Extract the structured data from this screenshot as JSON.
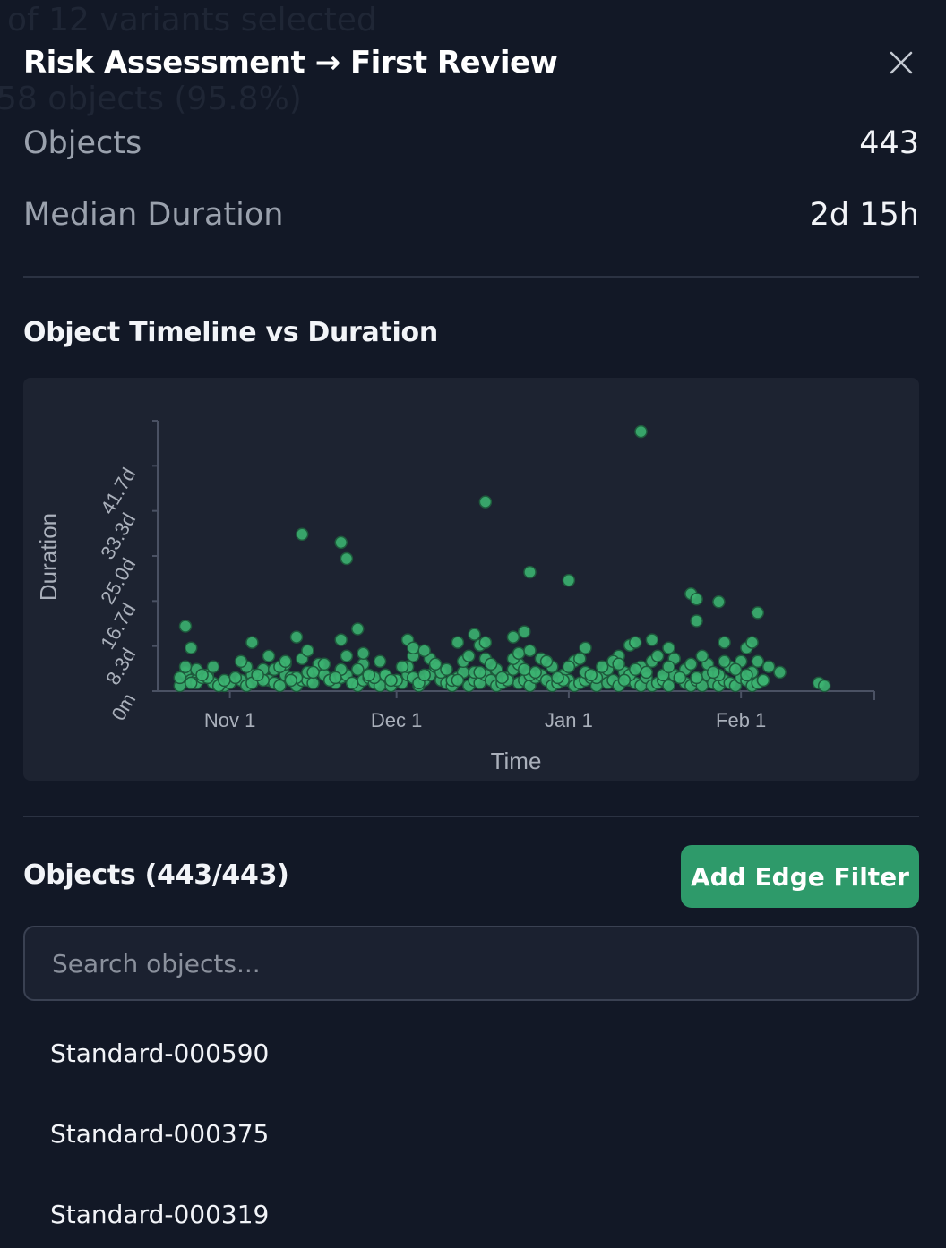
{
  "background_text": [
    "of 12 variants selected",
    "58 objects (95.8%)"
  ],
  "panel": {
    "title": "Risk Assessment → First Review",
    "close_icon": "close-icon"
  },
  "stats": [
    {
      "label": "Objects",
      "value": "443"
    },
    {
      "label": "Median Duration",
      "value": "2d 15h"
    }
  ],
  "chart_section_title": "Object Timeline vs Duration",
  "chart_data": {
    "type": "scatter",
    "xlabel": "Time",
    "ylabel": "Duration",
    "x_tick_labels": [
      "Nov 1",
      "Dec 1",
      "Jan 1",
      "Feb 1"
    ],
    "y_tick_labels": [
      "0m",
      "8.3d",
      "16.7d",
      "25.0d",
      "33.3d",
      "41.7d"
    ],
    "ylim_days": [
      0,
      50
    ],
    "xlim": [
      "2024-10-19",
      "2025-02-25"
    ],
    "grid": false,
    "point_color": "#3cb371",
    "series": [
      {
        "x": [
          "2024-10-23",
          "2024-10-24",
          "2024-10-25",
          "2024-10-26",
          "2024-10-26",
          "2024-10-27",
          "2024-10-28",
          "2024-10-29",
          "2024-10-30",
          "2024-10-31",
          "2024-11-01",
          "2024-11-03",
          "2024-11-04",
          "2024-11-05",
          "2024-11-06",
          "2024-11-07",
          "2024-11-08",
          "2024-11-09",
          "2024-11-10",
          "2024-11-11",
          "2024-11-12",
          "2024-11-13",
          "2024-11-14",
          "2024-11-15",
          "2024-11-16",
          "2024-11-17",
          "2024-11-18",
          "2024-11-19",
          "2024-11-20",
          "2024-11-21",
          "2024-11-22",
          "2024-11-23",
          "2024-11-24",
          "2024-11-25",
          "2024-11-26",
          "2024-11-27",
          "2024-11-28",
          "2024-11-29",
          "2024-11-30",
          "2024-12-01",
          "2024-12-02",
          "2024-12-03",
          "2024-12-04",
          "2024-12-05",
          "2024-12-06",
          "2024-12-07",
          "2024-12-08",
          "2024-12-09",
          "2024-12-10",
          "2024-12-11",
          "2024-12-12",
          "2024-12-13",
          "2024-12-14",
          "2024-12-15",
          "2024-12-16",
          "2024-12-17",
          "2024-12-18",
          "2024-12-19",
          "2024-12-20",
          "2024-12-21",
          "2024-12-22",
          "2024-12-23",
          "2024-12-24",
          "2024-12-25",
          "2024-12-26",
          "2024-12-27",
          "2024-12-28",
          "2024-12-29",
          "2024-12-30",
          "2024-12-31",
          "2025-01-01",
          "2025-01-02",
          "2025-01-03",
          "2025-01-04",
          "2025-01-05",
          "2025-01-06",
          "2025-01-07",
          "2025-01-08",
          "2025-01-09",
          "2025-01-10",
          "2025-01-11",
          "2025-01-12",
          "2025-01-13",
          "2025-01-14",
          "2025-01-15",
          "2025-01-16",
          "2025-01-17",
          "2025-01-18",
          "2025-01-19",
          "2025-01-20",
          "2025-01-21",
          "2025-01-22",
          "2025-01-23",
          "2025-01-24",
          "2025-01-25",
          "2025-01-26",
          "2025-01-27",
          "2025-01-28",
          "2025-01-29",
          "2025-01-30",
          "2025-01-31",
          "2025-02-01",
          "2025-02-02",
          "2025-02-03",
          "2025-02-04",
          "2025-02-05",
          "2025-02-08",
          "2025-02-15",
          "2025-02-16",
          "2024-10-23",
          "2024-10-25",
          "2024-10-26",
          "2024-10-28",
          "2024-10-30",
          "2024-11-02",
          "2024-11-04",
          "2024-11-05",
          "2024-11-07",
          "2024-11-09",
          "2024-11-11",
          "2024-11-13",
          "2024-11-15",
          "2024-11-17",
          "2024-11-19",
          "2024-11-21",
          "2024-11-23",
          "2024-11-25",
          "2024-11-27",
          "2024-11-29",
          "2024-12-01",
          "2024-12-03",
          "2024-12-05",
          "2024-12-07",
          "2024-12-09",
          "2024-12-11",
          "2024-12-13",
          "2024-12-15",
          "2024-12-17",
          "2024-12-19",
          "2024-12-21",
          "2024-12-23",
          "2024-12-25",
          "2024-12-27",
          "2024-12-29",
          "2024-12-31",
          "2025-01-02",
          "2025-01-04",
          "2025-01-06",
          "2025-01-08",
          "2025-01-10",
          "2025-01-12",
          "2025-01-14",
          "2025-01-16",
          "2025-01-18",
          "2025-01-20",
          "2025-01-22",
          "2025-01-24",
          "2025-01-26",
          "2025-01-28",
          "2025-01-30",
          "2025-02-01",
          "2025-02-03",
          "2025-02-05",
          "2024-10-24",
          "2024-10-27",
          "2024-10-31",
          "2024-11-03",
          "2024-11-06",
          "2024-11-08",
          "2024-11-10",
          "2024-11-12",
          "2024-11-14",
          "2024-11-16",
          "2024-11-18",
          "2024-11-20",
          "2024-11-22",
          "2024-11-24",
          "2024-11-26",
          "2024-11-28",
          "2024-11-30",
          "2024-12-02",
          "2024-12-04",
          "2024-12-06",
          "2024-12-08",
          "2024-12-10",
          "2024-12-12",
          "2024-12-14",
          "2024-12-16",
          "2024-12-18",
          "2024-12-20",
          "2024-12-22",
          "2024-12-24",
          "2024-12-26",
          "2024-12-28",
          "2024-12-30",
          "2025-01-01",
          "2025-01-03",
          "2025-01-05",
          "2025-01-07",
          "2025-01-09",
          "2025-01-11",
          "2025-01-13",
          "2025-01-15",
          "2025-01-17",
          "2025-01-19",
          "2025-01-21",
          "2025-01-23",
          "2025-01-25",
          "2025-01-27",
          "2025-01-29",
          "2025-01-31",
          "2025-02-02",
          "2025-02-04",
          "2024-10-24",
          "2024-10-25",
          "2024-10-29",
          "2024-11-05",
          "2024-11-11",
          "2024-11-13",
          "2024-11-15",
          "2024-11-21",
          "2024-11-24",
          "2024-11-25",
          "2024-12-03",
          "2024-12-04",
          "2024-12-06",
          "2024-12-12",
          "2024-12-15",
          "2024-12-16",
          "2024-12-17",
          "2024-12-22",
          "2024-12-23",
          "2024-12-24",
          "2024-12-25",
          "2025-01-04",
          "2025-01-10",
          "2025-01-12",
          "2025-01-13",
          "2025-01-16",
          "2025-01-19",
          "2025-01-24",
          "2025-01-29",
          "2025-02-02",
          "2025-02-03",
          "2025-02-06",
          "2024-11-14",
          "2024-11-21",
          "2024-11-22",
          "2024-12-17",
          "2024-12-25",
          "2025-01-01",
          "2025-01-14",
          "2025-01-23",
          "2025-01-24",
          "2025-01-28",
          "2025-02-04"
        ],
        "y": [
          1.0,
          3.5,
          2.0,
          2.0,
          1.5,
          2.5,
          3.0,
          1.5,
          1.0,
          1.0,
          1.5,
          2.0,
          1.0,
          3.0,
          2.5,
          4.0,
          2.0,
          1.5,
          1.0,
          3.0,
          2.5,
          1.0,
          2.0,
          2.0,
          1.5,
          4.0,
          3.0,
          2.0,
          1.5,
          2.5,
          3.0,
          1.5,
          1.0,
          2.0,
          2.5,
          1.5,
          1.0,
          3.0,
          1.0,
          2.0,
          1.5,
          3.0,
          2.5,
          1.0,
          2.0,
          3.0,
          4.5,
          2.0,
          1.5,
          1.0,
          2.5,
          3.5,
          1.0,
          2.0,
          1.5,
          3.0,
          2.0,
          1.0,
          1.5,
          2.5,
          4.0,
          1.5,
          2.0,
          1.0,
          2.5,
          3.0,
          2.0,
          1.0,
          1.5,
          3.0,
          2.0,
          1.0,
          1.5,
          2.0,
          2.5,
          1.0,
          3.0,
          1.5,
          2.0,
          1.0,
          3.5,
          2.0,
          1.5,
          1.0,
          2.5,
          1.0,
          1.5,
          2.0,
          1.0,
          3.0,
          2.5,
          1.5,
          1.0,
          2.0,
          1.0,
          3.0,
          1.5,
          1.0,
          2.0,
          1.5,
          1.0,
          2.5,
          2.0,
          1.0,
          1.5,
          2.0,
          3.5,
          1.5,
          1.0,
          2.5,
          1.5,
          4.0,
          2.5,
          1.0,
          2.5,
          4.5,
          1.5,
          2.0,
          4.0,
          5.0,
          2.5,
          3.5,
          5.0,
          2.0,
          4.0,
          1.5,
          5.0,
          2.5,
          3.0,
          2.0,
          4.5,
          1.5,
          6.0,
          3.5,
          2.0,
          5.5,
          3.5,
          6.0,
          4.0,
          2.0,
          5.0,
          3.0,
          6.0,
          4.5,
          2.0,
          5.5,
          3.5,
          2.5,
          4.0,
          6.5,
          3.0,
          4.5,
          5.5,
          3.0,
          6.0,
          4.0,
          2.5,
          5.0,
          3.0,
          4.5,
          5.5,
          3.5,
          2.0,
          4.5,
          3.0,
          2.0,
          5.5,
          3.0,
          6.5,
          4.5,
          2.0,
          6.0,
          3.5,
          5.0,
          2.5,
          6.5,
          4.0,
          3.0,
          5.5,
          2.0,
          4.5,
          6.5,
          3.0,
          5.0,
          4.0,
          2.0,
          6.5,
          3.5,
          5.0,
          2.5,
          6.0,
          4.0,
          3.5,
          5.5,
          2.5,
          4.5,
          6.0,
          3.0,
          4.5,
          5.5,
          2.0,
          4.0,
          3.5,
          6.5,
          4.5,
          2.5,
          5.0,
          6.5,
          3.5,
          5.5,
          4.0,
          3.0,
          5.5,
          12.0,
          8.0,
          4.5,
          9.0,
          5.5,
          10.0,
          7.5,
          9.5,
          11.5,
          7.0,
          9.5,
          8.0,
          7.5,
          9.0,
          10.5,
          8.5,
          9.0,
          10.0,
          7.0,
          11.0,
          7.5,
          8.0,
          5.0,
          8.5,
          9.0,
          9.5,
          8.0,
          13.0,
          9.0,
          8.0,
          9.0,
          4.5,
          29.0,
          27.5,
          24.5,
          35.0,
          22.0,
          20.5,
          48.0,
          18.0,
          17.0,
          16.5,
          14.5
        ]
      }
    ]
  },
  "objects_section": {
    "title": "Objects (443/443)",
    "add_filter_label": "Add Edge Filter",
    "search_placeholder": "Search objects..."
  },
  "object_list": [
    "Standard-000590",
    "Standard-000375",
    "Standard-000319"
  ]
}
